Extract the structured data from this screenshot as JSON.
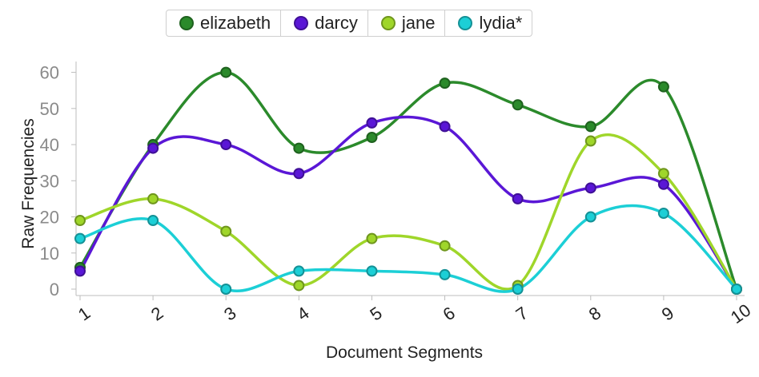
{
  "chart_data": {
    "type": "line",
    "xlabel": "Document Segments",
    "ylabel": "Raw Frequencies",
    "categories": [
      "1",
      "2",
      "3",
      "4",
      "5",
      "6",
      "7",
      "8",
      "9",
      "10"
    ],
    "ylim": [
      0,
      63
    ],
    "yticks": [
      0,
      10,
      20,
      30,
      40,
      50,
      60
    ],
    "legend_position": "top-center",
    "grid": false,
    "series": [
      {
        "name": "elizabeth",
        "color": "#2b8a2b",
        "values": [
          6,
          40,
          60,
          39,
          42,
          57,
          51,
          45,
          56,
          0
        ]
      },
      {
        "name": "darcy",
        "color": "#5a17d6",
        "values": [
          5,
          39,
          40,
          32,
          46,
          45,
          25,
          28,
          29,
          0
        ]
      },
      {
        "name": "jane",
        "color": "#9fd62a",
        "values": [
          19,
          25,
          16,
          1,
          14,
          12,
          1,
          41,
          32,
          0
        ]
      },
      {
        "name": "lydia*",
        "color": "#1ccfd6",
        "values": [
          14,
          19,
          0,
          5,
          5,
          4,
          0,
          20,
          21,
          0
        ]
      }
    ]
  }
}
